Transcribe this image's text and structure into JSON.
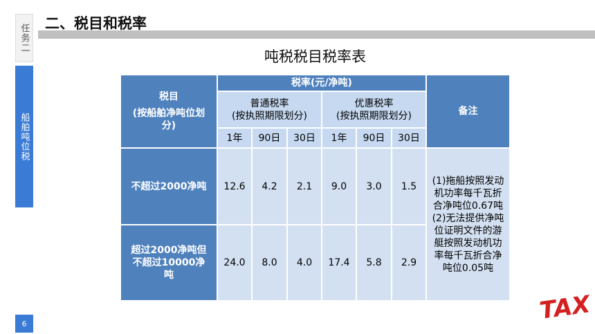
{
  "header": {
    "title": "二、税目和税率",
    "task": "任务二",
    "section": "船舶吨位税",
    "page": "6",
    "logo": "TAX"
  },
  "table": {
    "title": "吨税税目税率表",
    "col0": [
      "税目",
      "(按船舶净吨位划分)"
    ],
    "rate_header": "税率(元/净吨)",
    "groups": [
      [
        "普通税率",
        "(按执照期限划分)"
      ],
      [
        "优惠税率",
        "(按执照期限划分)"
      ]
    ],
    "periods": [
      "1年",
      "90日",
      "30日",
      "1年",
      "90日",
      "30日"
    ],
    "note_header": "备注",
    "rows": [
      {
        "label": "不超过2000净吨",
        "values": [
          "12.6",
          "4.2",
          "2.1",
          "9.0",
          "3.0",
          "1.5"
        ]
      },
      {
        "label": "超过2000净吨但不超过10000净吨",
        "values": [
          "24.0",
          "8.0",
          "4.0",
          "17.4",
          "5.8",
          "2.9"
        ]
      }
    ],
    "notes": [
      "(1)拖船按照发动机功率每千瓦折合净吨位0.67吨",
      "(2)无法提供净吨位证明文件的游艇按照发动机功率每千瓦折合净吨位0.05吨"
    ]
  }
}
